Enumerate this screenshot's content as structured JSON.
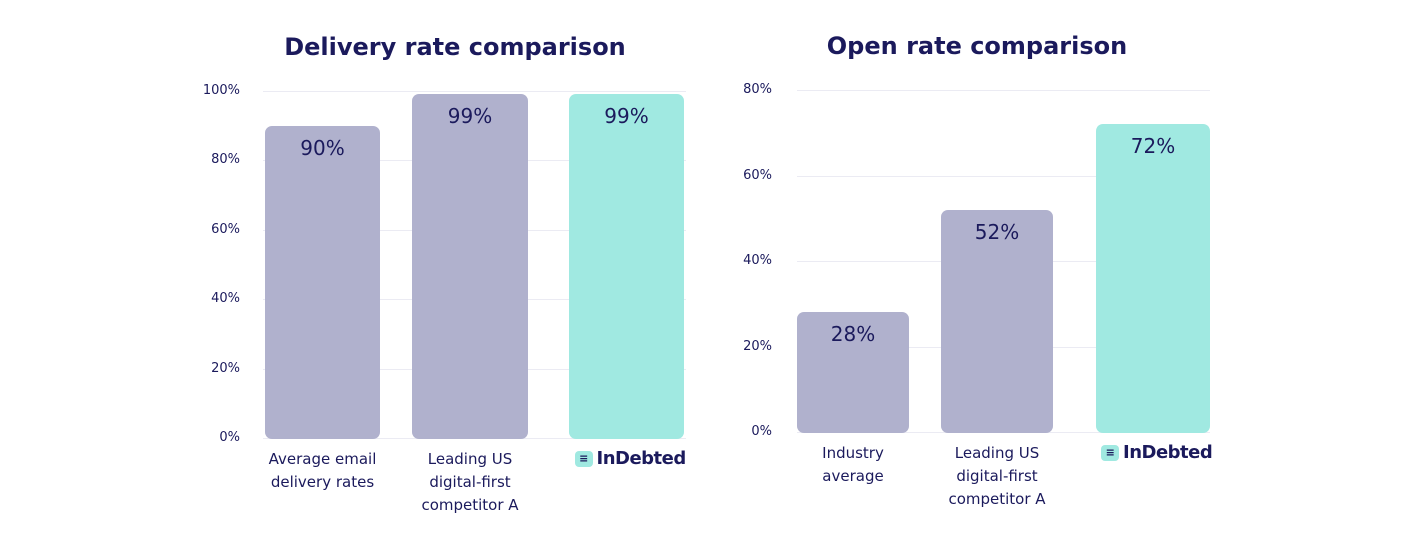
{
  "colors": {
    "text": "#1b1a5c",
    "bar": "#b0b1cd",
    "highlight": "#a0e9e1",
    "grid": "#ebebf3"
  },
  "chart_data": [
    {
      "type": "bar",
      "title": "Delivery rate comparison",
      "ylim": [
        0,
        100
      ],
      "yticks": [
        "0%",
        "20%",
        "40%",
        "60%",
        "80%",
        "100%"
      ],
      "grid": true,
      "categories": [
        "Average email\ndelivery rates",
        "Leading US\ndigital-first\ncompetitor A",
        "InDebted"
      ],
      "values": [
        90,
        99,
        99
      ],
      "data_labels": [
        "90%",
        "99%",
        "99%"
      ],
      "highlight": [
        false,
        false,
        true
      ],
      "logo_category": 2
    },
    {
      "type": "bar",
      "title": "Open rate comparison",
      "ylim": [
        0,
        80
      ],
      "yticks": [
        "0%",
        "20%",
        "40%",
        "60%",
        "80%"
      ],
      "grid": true,
      "categories": [
        "Industry\naverage",
        "Leading US\ndigital-first\ncompetitor A",
        "InDebted"
      ],
      "values": [
        28,
        52,
        72
      ],
      "data_labels": [
        "28%",
        "52%",
        "72%"
      ],
      "highlight": [
        false,
        false,
        true
      ],
      "logo_category": 2
    }
  ]
}
